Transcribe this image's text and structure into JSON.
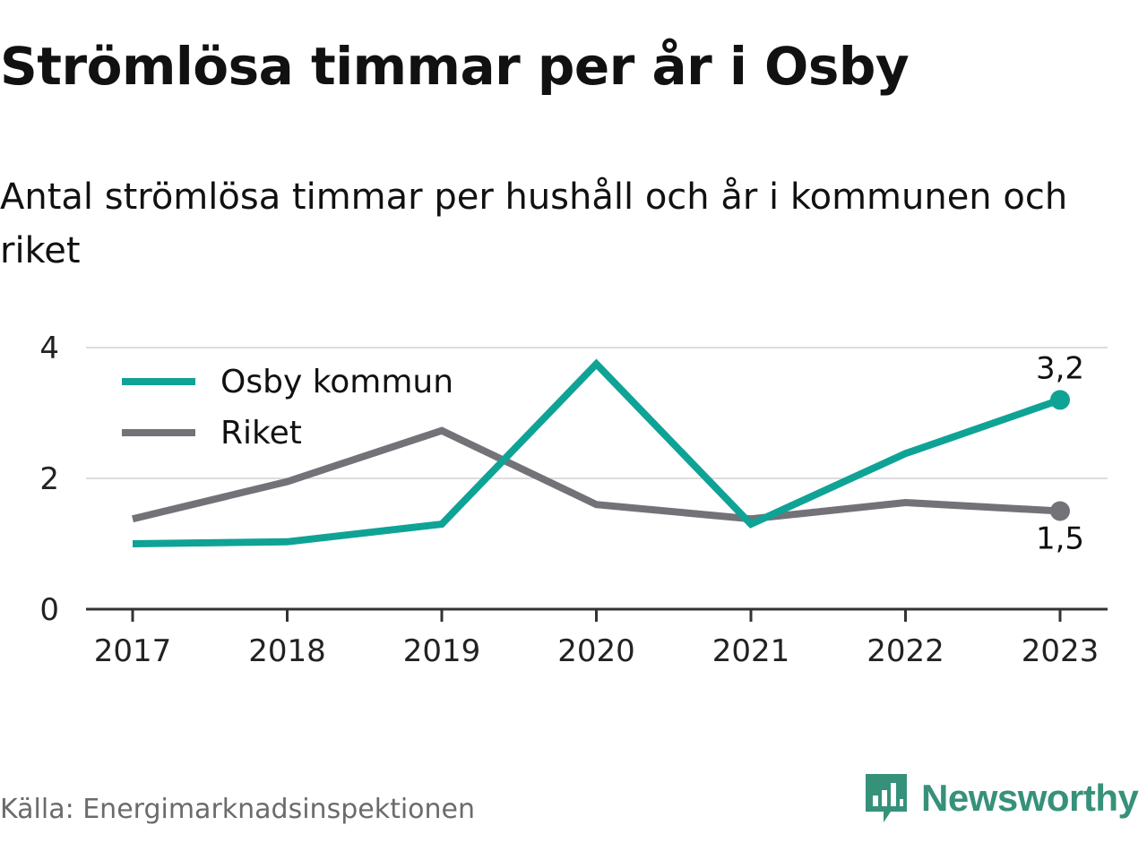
{
  "title": "Strömlösa timmar per år i Osby",
  "subtitle": "Antal strömlösa timmar per hushåll och år i kommunen och riket",
  "source": "Källa: Energimarknadsinspektionen",
  "brand": "Newsworthy",
  "colors": {
    "osby": "#0fa396",
    "riket": "#737278",
    "grid": "#dddddd",
    "axis": "#333333",
    "brand": "#36917a",
    "legend_halo": "#e6e6e6"
  },
  "chart_data": {
    "type": "line",
    "x": [
      "2017",
      "2018",
      "2019",
      "2020",
      "2021",
      "2022",
      "2023"
    ],
    "ylim": [
      0,
      4
    ],
    "yticks": [
      "0",
      "2",
      "4"
    ],
    "grid": true,
    "legend_position": "top-left",
    "series": [
      {
        "name": "Osby kommun",
        "color": "#0fa396",
        "values": [
          1.0,
          1.03,
          1.3,
          3.75,
          1.3,
          2.38,
          3.2
        ],
        "end_label": "3,2"
      },
      {
        "name": "Riket",
        "color": "#737278",
        "values": [
          1.38,
          1.95,
          2.73,
          1.6,
          1.38,
          1.63,
          1.5
        ],
        "end_label": "1,5"
      }
    ]
  }
}
